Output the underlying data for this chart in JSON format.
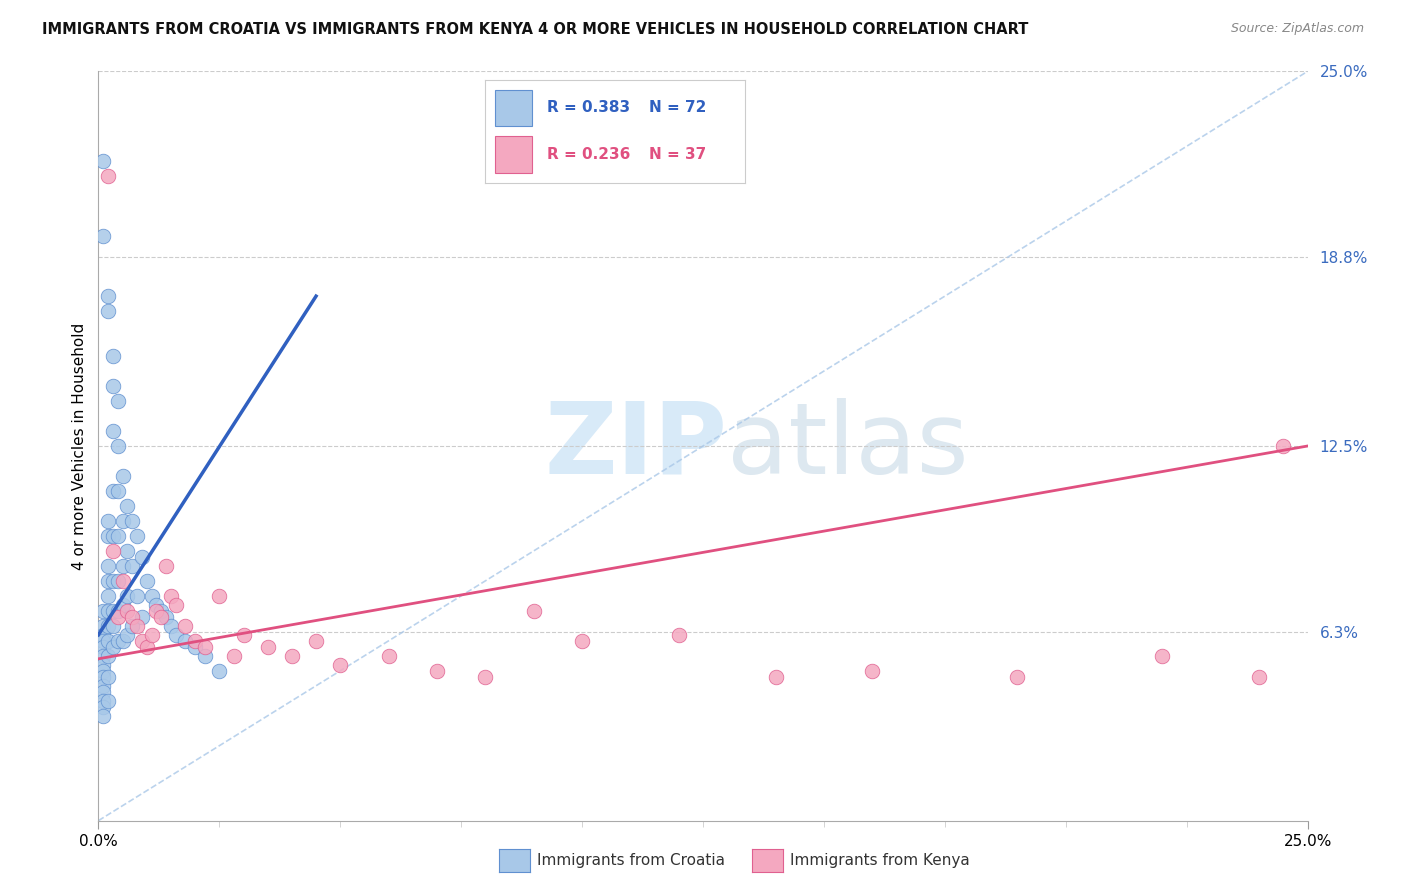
{
  "title": "IMMIGRANTS FROM CROATIA VS IMMIGRANTS FROM KENYA 4 OR MORE VEHICLES IN HOUSEHOLD CORRELATION CHART",
  "source": "Source: ZipAtlas.com",
  "ylabel": "4 or more Vehicles in Household",
  "xlim": [
    0.0,
    0.25
  ],
  "ylim": [
    0.0,
    0.25
  ],
  "xticks": [
    0.0,
    0.25
  ],
  "xticklabels": [
    "0.0%",
    "25.0%"
  ],
  "xtick_minor_count": 9,
  "ytick_positions": [
    0.063,
    0.125,
    0.188,
    0.25
  ],
  "ytick_labels": [
    "6.3%",
    "12.5%",
    "18.8%",
    "25.0%"
  ],
  "croatia_color": "#a8c8e8",
  "kenya_color": "#f4a8c0",
  "croatia_edge_color": "#6090d0",
  "kenya_edge_color": "#e06090",
  "croatia_line_color": "#3060c0",
  "kenya_line_color": "#e05080",
  "legend_r_croatia": "R = 0.383",
  "legend_n_croatia": "N = 72",
  "legend_r_kenya": "R = 0.236",
  "legend_n_kenya": "N = 37",
  "croatia_trend_x0": 0.0,
  "croatia_trend_x1": 0.045,
  "kenya_trend_x0": 0.0,
  "kenya_trend_x1": 0.25,
  "croatia_trend_y0": 0.062,
  "croatia_trend_y1": 0.175,
  "kenya_trend_y0": 0.054,
  "kenya_trend_y1": 0.125,
  "croatia_x": [
    0.001,
    0.001,
    0.001,
    0.001,
    0.001,
    0.001,
    0.001,
    0.001,
    0.001,
    0.001,
    0.001,
    0.001,
    0.001,
    0.001,
    0.001,
    0.001,
    0.002,
    0.002,
    0.002,
    0.002,
    0.002,
    0.002,
    0.002,
    0.002,
    0.002,
    0.002,
    0.002,
    0.002,
    0.002,
    0.003,
    0.003,
    0.003,
    0.003,
    0.003,
    0.003,
    0.003,
    0.003,
    0.003,
    0.004,
    0.004,
    0.004,
    0.004,
    0.004,
    0.004,
    0.004,
    0.005,
    0.005,
    0.005,
    0.005,
    0.005,
    0.006,
    0.006,
    0.006,
    0.006,
    0.007,
    0.007,
    0.007,
    0.008,
    0.008,
    0.009,
    0.009,
    0.01,
    0.011,
    0.012,
    0.013,
    0.014,
    0.015,
    0.016,
    0.018,
    0.02,
    0.022,
    0.025
  ],
  "croatia_y": [
    0.22,
    0.195,
    0.07,
    0.065,
    0.062,
    0.06,
    0.058,
    0.055,
    0.052,
    0.05,
    0.048,
    0.045,
    0.043,
    0.04,
    0.038,
    0.035,
    0.175,
    0.17,
    0.1,
    0.095,
    0.085,
    0.08,
    0.075,
    0.07,
    0.065,
    0.06,
    0.055,
    0.048,
    0.04,
    0.155,
    0.145,
    0.13,
    0.11,
    0.095,
    0.08,
    0.07,
    0.065,
    0.058,
    0.14,
    0.125,
    0.11,
    0.095,
    0.08,
    0.07,
    0.06,
    0.115,
    0.1,
    0.085,
    0.072,
    0.06,
    0.105,
    0.09,
    0.075,
    0.062,
    0.1,
    0.085,
    0.065,
    0.095,
    0.075,
    0.088,
    0.068,
    0.08,
    0.075,
    0.072,
    0.07,
    0.068,
    0.065,
    0.062,
    0.06,
    0.058,
    0.055,
    0.05
  ],
  "kenya_x": [
    0.002,
    0.003,
    0.004,
    0.005,
    0.006,
    0.007,
    0.008,
    0.009,
    0.01,
    0.011,
    0.012,
    0.013,
    0.014,
    0.015,
    0.016,
    0.018,
    0.02,
    0.022,
    0.025,
    0.028,
    0.03,
    0.035,
    0.04,
    0.045,
    0.05,
    0.06,
    0.07,
    0.08,
    0.09,
    0.1,
    0.12,
    0.14,
    0.16,
    0.19,
    0.22,
    0.24,
    0.245
  ],
  "kenya_y": [
    0.215,
    0.09,
    0.068,
    0.08,
    0.07,
    0.068,
    0.065,
    0.06,
    0.058,
    0.062,
    0.07,
    0.068,
    0.085,
    0.075,
    0.072,
    0.065,
    0.06,
    0.058,
    0.075,
    0.055,
    0.062,
    0.058,
    0.055,
    0.06,
    0.052,
    0.055,
    0.05,
    0.048,
    0.07,
    0.06,
    0.062,
    0.048,
    0.05,
    0.048,
    0.055,
    0.048,
    0.125
  ]
}
